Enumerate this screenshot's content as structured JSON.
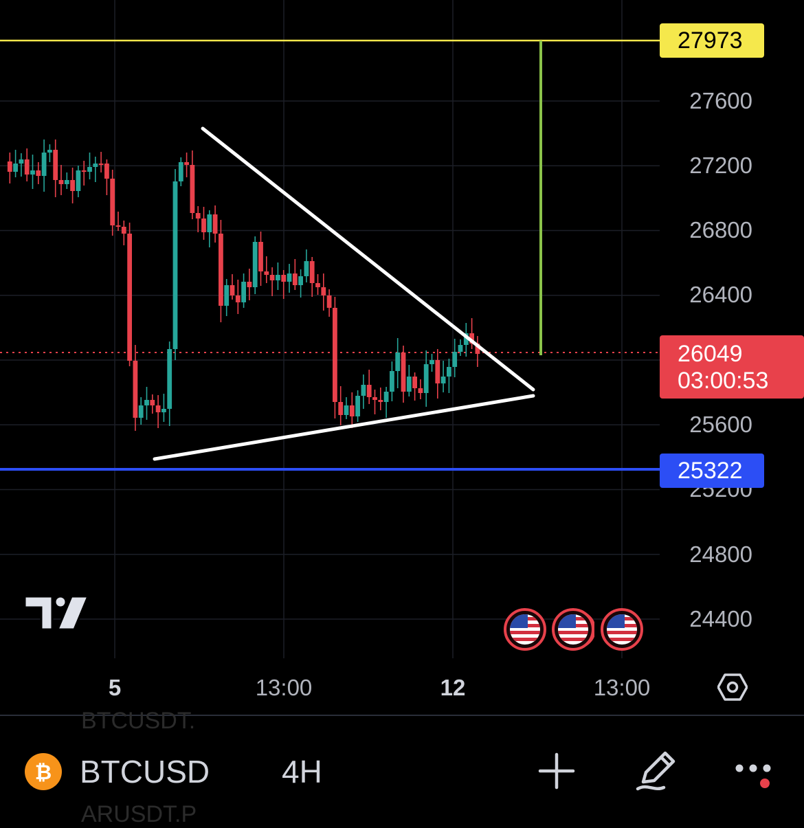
{
  "chart": {
    "symbol": "BTCUSD",
    "interval": "4H",
    "y_axis_labels": [
      "27600",
      "27200",
      "26800",
      "26400",
      "25600",
      "25200",
      "24800",
      "24400"
    ],
    "x_axis_labels": [
      {
        "text": "5",
        "bold": true
      },
      {
        "text": "13:00",
        "bold": false
      },
      {
        "text": "12",
        "bold": true
      },
      {
        "text": "13:00",
        "bold": false
      }
    ],
    "high_line": {
      "price": "27973",
      "color": "#f5e84c"
    },
    "low_line": {
      "price": "25322",
      "color": "#2c4ef5"
    },
    "current": {
      "price": "26049",
      "countdown": "03:00:53",
      "color": "#e8414b"
    },
    "up_color": "#26a69a",
    "down_color": "#e8414b",
    "target_line_color": "#8bc34a",
    "pattern": "symmetrical-triangle"
  },
  "bottom_bar": {
    "ghost_top": "BTCUSDT.",
    "ghost_bottom": "ARUSDT.P",
    "coin_icon": "bitcoin-icon",
    "add_icon": "plus-icon",
    "draw_icon": "pencil-icon",
    "more_icon": "more-dots-icon"
  }
}
